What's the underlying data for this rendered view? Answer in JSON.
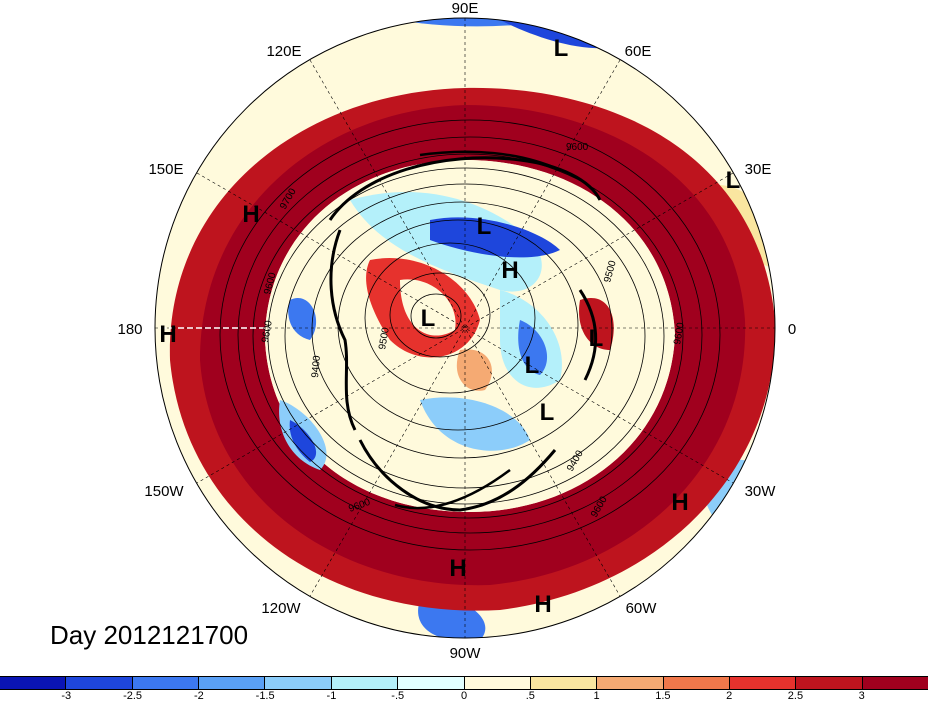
{
  "title": "Day 2012121700",
  "longitude_labels": [
    "90E",
    "60E",
    "30E",
    "0",
    "30W",
    "60W",
    "90W",
    "120W",
    "150W",
    "180",
    "150E",
    "120E"
  ],
  "pressure_systems": [
    "L",
    "L",
    "H",
    "L",
    "H",
    "L",
    "L",
    "L",
    "H",
    "H",
    "H",
    "H",
    "L"
  ],
  "contour_labels": [
    "9600",
    "9700",
    "9600",
    "9600",
    "9500",
    "9400",
    "9600",
    "9400",
    "9600",
    "9600",
    "9500"
  ],
  "colorbar": {
    "tick_labels": [
      "-3",
      "-2.5",
      "-2",
      "-1.5",
      "-1",
      "-.5",
      "0",
      ".5",
      "1",
      "1.5",
      "2",
      "2.5",
      "3"
    ],
    "colors": [
      "#0a14b4",
      "#1e46dc",
      "#3c78f0",
      "#5aa0f5",
      "#8ccdfa",
      "#b4f0fa",
      "#e1ffff",
      "#fffadc",
      "#fae6a0",
      "#f5aa73",
      "#f0784b",
      "#e6322d",
      "#be141e",
      "#a0001e"
    ]
  }
}
